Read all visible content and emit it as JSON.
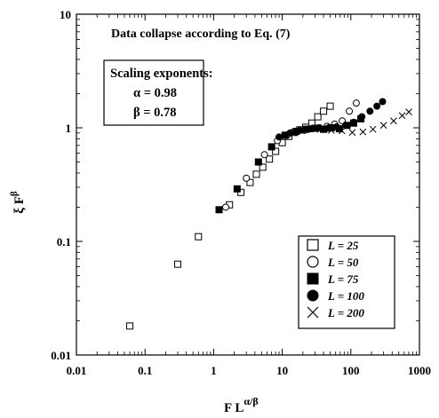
{
  "chart_data": {
    "type": "scatter",
    "title": "Data collapse according to Eq. (7)",
    "xlabel": "F L",
    "xlabel_sup": "α/β",
    "ylabel": "ξ F",
    "ylabel_sup": "β",
    "x_scale": "log",
    "y_scale": "log",
    "xlim": [
      0.01,
      1000
    ],
    "ylim": [
      0.01,
      10
    ],
    "x_ticks": [
      "0.01",
      "0.1",
      "1",
      "10",
      "100",
      "1000"
    ],
    "y_ticks": [
      "0.01",
      "0.1",
      "1",
      "10"
    ],
    "grid": false,
    "legend_position": "bottom-right",
    "annotation": {
      "heading": "Scaling exponents:",
      "lines": [
        "α = 0.98",
        "β = 0.78"
      ]
    },
    "series": [
      {
        "name": "L = 25",
        "marker": "open-square",
        "x": [
          0.06,
          0.3,
          0.6,
          1.7,
          2.5,
          3.4,
          4.2,
          5.2,
          6.5,
          8.0,
          10,
          12.5,
          15,
          18,
          22,
          27,
          33,
          40,
          50
        ],
        "y": [
          0.018,
          0.063,
          0.11,
          0.21,
          0.27,
          0.33,
          0.39,
          0.45,
          0.53,
          0.62,
          0.74,
          0.84,
          0.91,
          0.96,
          1.01,
          1.1,
          1.25,
          1.4,
          1.55
        ]
      },
      {
        "name": "L = 50",
        "marker": "open-circle",
        "x": [
          1.5,
          3.0,
          5.5,
          8.5,
          12,
          16,
          21,
          27,
          35,
          45,
          58,
          75,
          95,
          120
        ],
        "y": [
          0.2,
          0.36,
          0.58,
          0.77,
          0.87,
          0.92,
          0.95,
          0.98,
          1.0,
          1.03,
          1.08,
          1.15,
          1.4,
          1.65
        ]
      },
      {
        "name": "L = 75",
        "marker": "filled-square",
        "x": [
          1.2,
          2.2,
          4.5,
          7.0,
          11,
          16,
          22,
          30,
          40,
          52,
          68,
          88,
          110,
          140
        ],
        "y": [
          0.19,
          0.29,
          0.5,
          0.68,
          0.86,
          0.93,
          0.97,
          0.99,
          0.97,
          1.0,
          0.98,
          1.05,
          1.1,
          1.2
        ]
      },
      {
        "name": "L = 100",
        "marker": "filled-circle",
        "x": [
          9,
          13,
          18,
          25,
          34,
          46,
          62,
          84,
          110,
          145,
          190,
          240,
          290
        ],
        "y": [
          0.83,
          0.9,
          0.95,
          0.98,
          1.0,
          0.99,
          1.02,
          1.05,
          1.12,
          1.25,
          1.4,
          1.55,
          1.7
        ]
      },
      {
        "name": "L = 200",
        "marker": "cross",
        "x": [
          24,
          36,
          52,
          74,
          105,
          150,
          210,
          300,
          420,
          560,
          700
        ],
        "y": [
          0.98,
          0.97,
          0.95,
          0.94,
          0.91,
          0.92,
          0.97,
          1.05,
          1.15,
          1.28,
          1.38
        ]
      }
    ]
  }
}
